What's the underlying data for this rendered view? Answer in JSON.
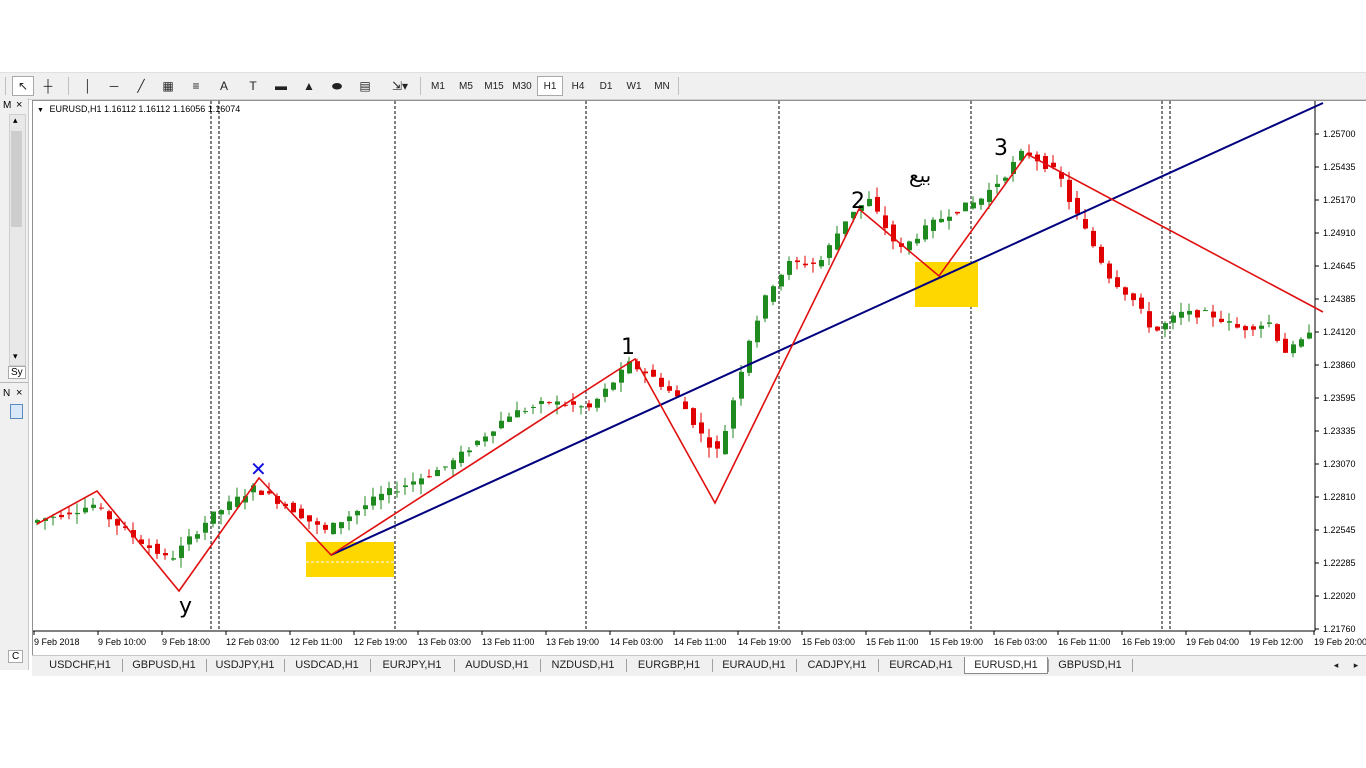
{
  "toolbar": {
    "tools": [
      {
        "name": "cursor-tool",
        "glyph": "↖"
      },
      {
        "name": "crosshair-tool",
        "glyph": "┼"
      },
      {
        "name": "vertical-line-tool",
        "glyph": "│"
      },
      {
        "name": "horizontal-line-tool",
        "glyph": "─"
      },
      {
        "name": "trendline-tool",
        "glyph": "╱"
      },
      {
        "name": "equidistant-channel-tool",
        "glyph": "▦"
      },
      {
        "name": "fibonacci-tool",
        "glyph": "≡"
      },
      {
        "name": "text-tool",
        "glyph": "A"
      },
      {
        "name": "text-label-tool",
        "glyph": "T"
      },
      {
        "name": "rectangle-tool",
        "glyph": "▬"
      },
      {
        "name": "triangle-tool",
        "glyph": "▲"
      },
      {
        "name": "ellipse-tool",
        "glyph": "⬬"
      },
      {
        "name": "fibo-fan-tool",
        "glyph": "▤"
      },
      {
        "name": "arrows-tool",
        "glyph": "⇲▾"
      }
    ],
    "timeframes": [
      "M1",
      "M5",
      "M15",
      "M30",
      "H1",
      "H4",
      "D1",
      "W1",
      "MN"
    ],
    "active_timeframe": "H1"
  },
  "side": {
    "market_watch_tab": "M",
    "symbols_tab": "Sy",
    "navigator_tab": "N",
    "c_tab": "C",
    "close_glyph": "×"
  },
  "chart": {
    "header": "EURUSD,H1  1.16112 1.16112 1.16056 1.16074",
    "price_labels": [
      "1.25700",
      "1.25435",
      "1.25170",
      "1.24910",
      "1.24645",
      "1.24385",
      "1.24120",
      "1.23860",
      "1.23595",
      "1.23335",
      "1.23070",
      "1.22810",
      "1.22545",
      "1.22285",
      "1.22020",
      "1.21760"
    ],
    "time_labels": [
      "9 Feb 2018",
      "9 Feb 10:00",
      "9 Feb 18:00",
      "12 Feb 03:00",
      "12 Feb 11:00",
      "12 Feb 19:00",
      "13 Feb 03:00",
      "13 Feb 11:00",
      "13 Feb 19:00",
      "14 Feb 03:00",
      "14 Feb 11:00",
      "14 Feb 19:00",
      "15 Feb 03:00",
      "15 Feb 11:00",
      "15 Feb 19:00",
      "16 Feb 03:00",
      "16 Feb 11:00",
      "16 Feb 19:00",
      "19 Feb 04:00",
      "19 Feb 12:00",
      "19 Feb 20:00"
    ],
    "annotations": {
      "label_y": "y",
      "label_1": "1",
      "label_2": "2",
      "label_3": "3",
      "label_sell": "بيع",
      "cross_mark": "✕"
    },
    "colors": {
      "bull": "#1f8a1f",
      "bear": "#e00000",
      "zigzag": "#e01010",
      "trendline": "#000080",
      "zone": "#ffd700",
      "cross": "#1010e0"
    }
  },
  "tabs": [
    "USDCHF,H1",
    "GBPUSD,H1",
    "USDJPY,H1",
    "USDCAD,H1",
    "EURJPY,H1",
    "AUDUSD,H1",
    "NZDUSD,H1",
    "EURGBP,H1",
    "EURAUD,H1",
    "CADJPY,H1",
    "EURCAD,H1",
    "EURUSD,H1",
    "GBPUSD,H1"
  ],
  "active_tab": "EURUSD,H1",
  "tab_scroll": {
    "left": "◂",
    "right": "▸"
  }
}
